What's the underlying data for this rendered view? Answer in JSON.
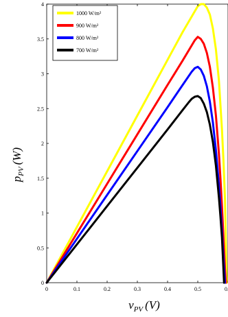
{
  "chart_data": {
    "type": "line",
    "xlabel": "v_PV (V)",
    "ylabel": "p_PV (W)",
    "xlim": [
      0,
      0.6
    ],
    "ylim": [
      0,
      4
    ],
    "x_ticks": [
      "0",
      "0.1",
      "0.2",
      "0.3",
      "0.4",
      "0.5",
      "0.6"
    ],
    "y_ticks": [
      "0",
      "0.5",
      "1",
      "1.5",
      "2",
      "2.5",
      "3",
      "3.5",
      "4"
    ],
    "legend_position": "top-left",
    "grid": false,
    "series": [
      {
        "name": "1000 W/m²",
        "color": "#ffff00",
        "x": [
          0,
          0.1,
          0.2,
          0.3,
          0.4,
          0.45,
          0.5,
          0.51,
          0.52,
          0.53,
          0.54,
          0.55,
          0.56,
          0.57,
          0.58,
          0.585,
          0.59,
          0.592,
          0.594,
          0.596
        ],
        "y": [
          0,
          0.8,
          1.6,
          2.4,
          3.2,
          3.6,
          3.97,
          4.0,
          4.0,
          3.95,
          3.85,
          3.65,
          3.35,
          2.9,
          2.2,
          1.75,
          1.2,
          0.8,
          0.4,
          0
        ]
      },
      {
        "name": "900 W/m²",
        "color": "#ff0000",
        "x": [
          0,
          0.1,
          0.2,
          0.3,
          0.4,
          0.45,
          0.49,
          0.5,
          0.51,
          0.52,
          0.53,
          0.54,
          0.55,
          0.56,
          0.57,
          0.575,
          0.58,
          0.585,
          0.59,
          0.593
        ],
        "y": [
          0,
          0.71,
          1.42,
          2.13,
          2.84,
          3.19,
          3.48,
          3.53,
          3.5,
          3.43,
          3.3,
          3.1,
          2.8,
          2.4,
          1.85,
          1.5,
          1.1,
          0.65,
          0.2,
          0
        ]
      },
      {
        "name": "800 W/m²",
        "color": "#0000ff",
        "x": [
          0,
          0.1,
          0.2,
          0.3,
          0.4,
          0.45,
          0.48,
          0.49,
          0.5,
          0.51,
          0.52,
          0.53,
          0.54,
          0.55,
          0.56,
          0.57,
          0.575,
          0.58,
          0.585,
          0.59
        ],
        "y": [
          0,
          0.63,
          1.26,
          1.89,
          2.52,
          2.84,
          3.03,
          3.08,
          3.1,
          3.06,
          2.97,
          2.82,
          2.6,
          2.3,
          1.9,
          1.4,
          1.1,
          0.75,
          0.35,
          0
        ]
      },
      {
        "name": "700 W/m²",
        "color": "#000000",
        "x": [
          0,
          0.1,
          0.2,
          0.3,
          0.4,
          0.45,
          0.47,
          0.48,
          0.49,
          0.5,
          0.51,
          0.52,
          0.53,
          0.54,
          0.55,
          0.56,
          0.57,
          0.575,
          0.58,
          0.587
        ],
        "y": [
          0,
          0.55,
          1.1,
          1.65,
          2.2,
          2.48,
          2.59,
          2.64,
          2.67,
          2.68,
          2.65,
          2.57,
          2.45,
          2.27,
          2.02,
          1.68,
          1.22,
          0.95,
          0.65,
          0
        ]
      }
    ]
  }
}
